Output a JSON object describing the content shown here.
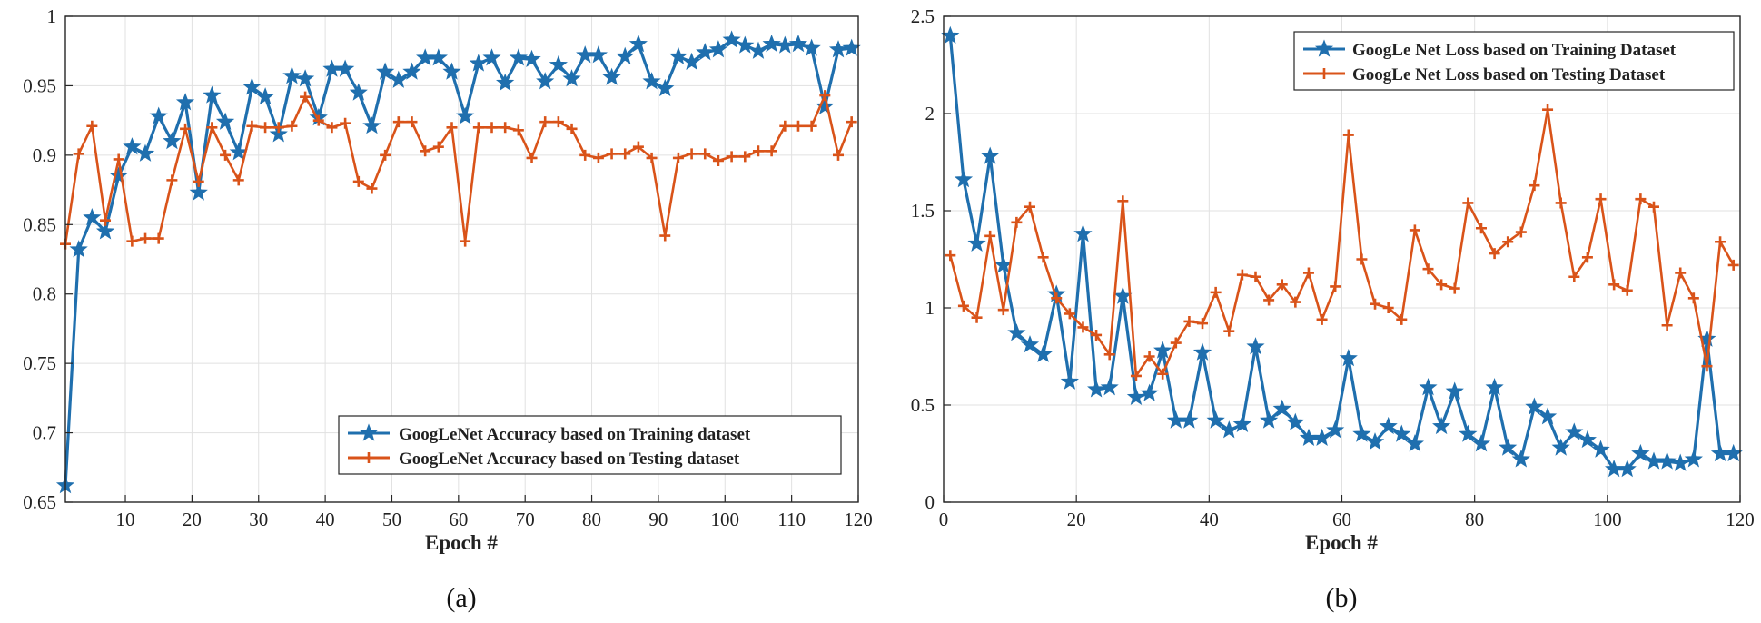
{
  "chart_data": [
    {
      "type": "line",
      "caption": "(a)",
      "xlabel": "Epoch #",
      "ylabel": "",
      "xlim": [
        1,
        120
      ],
      "ylim": [
        0.65,
        1
      ],
      "xticks": [
        10,
        20,
        30,
        40,
        50,
        60,
        70,
        80,
        90,
        100,
        110,
        120
      ],
      "xtick_labels": [
        "10",
        "20",
        "30",
        "40",
        "50",
        "60",
        "70",
        "80",
        "90",
        "100",
        "110",
        "120"
      ],
      "yticks": [
        0.65,
        0.7,
        0.75,
        0.8,
        0.85,
        0.9,
        0.95,
        1
      ],
      "ytick_labels": [
        "0.65",
        "0.7",
        "0.75",
        "0.8",
        "0.85",
        "0.9",
        "0.95",
        "1"
      ],
      "grid": true,
      "legend_position": "bottom-right",
      "x": [
        1,
        3,
        5,
        7,
        9,
        11,
        13,
        15,
        17,
        19,
        21,
        23,
        25,
        27,
        29,
        31,
        33,
        35,
        37,
        39,
        41,
        43,
        45,
        47,
        49,
        51,
        53,
        55,
        57,
        59,
        61,
        63,
        65,
        67,
        69,
        71,
        73,
        75,
        77,
        79,
        81,
        83,
        85,
        87,
        89,
        91,
        93,
        95,
        97,
        99,
        101,
        103,
        105,
        107,
        109,
        111,
        113,
        115,
        117,
        119
      ],
      "series": [
        {
          "name": "GoogLeNet Accuracy based on Training dataset",
          "color": "#1f6fae",
          "marker": "star",
          "values": [
            0.662,
            0.832,
            0.855,
            0.845,
            0.885,
            0.906,
            0.901,
            0.928,
            0.91,
            0.938,
            0.873,
            0.943,
            0.924,
            0.902,
            0.949,
            0.942,
            0.915,
            0.957,
            0.955,
            0.927,
            0.962,
            0.962,
            0.945,
            0.921,
            0.96,
            0.954,
            0.96,
            0.97,
            0.97,
            0.96,
            0.928,
            0.966,
            0.97,
            0.952,
            0.97,
            0.969,
            0.953,
            0.965,
            0.955,
            0.972,
            0.972,
            0.956,
            0.971,
            0.98,
            0.953,
            0.948,
            0.971,
            0.967,
            0.974,
            0.976,
            0.983,
            0.979,
            0.975,
            0.98,
            0.979,
            0.98,
            0.977,
            0.935,
            0.976,
            0.977
          ]
        },
        {
          "name": "GoogLeNet Accuracy based on Testing dataset",
          "color": "#d95319",
          "marker": "plus",
          "values": [
            0.836,
            0.901,
            0.921,
            0.853,
            0.897,
            0.838,
            0.84,
            0.84,
            0.882,
            0.919,
            0.881,
            0.92,
            0.9,
            0.882,
            0.921,
            0.92,
            0.92,
            0.921,
            0.942,
            0.925,
            0.92,
            0.923,
            0.881,
            0.876,
            0.9,
            0.924,
            0.924,
            0.903,
            0.906,
            0.92,
            0.838,
            0.92,
            0.92,
            0.92,
            0.918,
            0.898,
            0.924,
            0.924,
            0.919,
            0.9,
            0.898,
            0.901,
            0.901,
            0.906,
            0.898,
            0.842,
            0.898,
            0.901,
            0.901,
            0.896,
            0.899,
            0.899,
            0.903,
            0.903,
            0.921,
            0.921,
            0.921,
            0.943,
            0.9,
            0.924
          ]
        }
      ]
    },
    {
      "type": "line",
      "caption": "(b)",
      "xlabel": "Epoch #",
      "ylabel": "",
      "xlim": [
        0,
        120
      ],
      "ylim": [
        0,
        2.5
      ],
      "xticks": [
        0,
        20,
        40,
        60,
        80,
        100,
        120
      ],
      "xtick_labels": [
        "0",
        "20",
        "40",
        "60",
        "80",
        "100",
        "120"
      ],
      "yticks": [
        0,
        0.5,
        1,
        1.5,
        2,
        2.5
      ],
      "ytick_labels": [
        "0",
        "0.5",
        "1",
        "1.5",
        "2",
        "2.5"
      ],
      "grid": true,
      "legend_position": "top-right",
      "x": [
        1,
        3,
        5,
        7,
        9,
        11,
        13,
        15,
        17,
        19,
        21,
        23,
        25,
        27,
        29,
        31,
        33,
        35,
        37,
        39,
        41,
        43,
        45,
        47,
        49,
        51,
        53,
        55,
        57,
        59,
        61,
        63,
        65,
        67,
        69,
        71,
        73,
        75,
        77,
        79,
        81,
        83,
        85,
        87,
        89,
        91,
        93,
        95,
        97,
        99,
        101,
        103,
        105,
        107,
        109,
        111,
        113,
        115,
        117,
        119
      ],
      "series": [
        {
          "name": "GoogLe Net Loss based on Training Dataset",
          "color": "#1f6fae",
          "marker": "star",
          "values": [
            2.4,
            1.66,
            1.33,
            1.78,
            1.22,
            0.87,
            0.81,
            0.76,
            1.07,
            0.62,
            1.38,
            0.58,
            0.59,
            1.06,
            0.54,
            0.56,
            0.78,
            0.42,
            0.42,
            0.77,
            0.42,
            0.37,
            0.4,
            0.8,
            0.42,
            0.48,
            0.41,
            0.33,
            0.33,
            0.37,
            0.74,
            0.35,
            0.31,
            0.39,
            0.35,
            0.3,
            0.59,
            0.39,
            0.57,
            0.35,
            0.3,
            0.59,
            0.28,
            0.22,
            0.49,
            0.44,
            0.28,
            0.36,
            0.32,
            0.27,
            0.17,
            0.17,
            0.25,
            0.21,
            0.21,
            0.2,
            0.22,
            0.84,
            0.25,
            0.25
          ]
        },
        {
          "name": "GoogLe Net Loss based on Testing Dataset",
          "color": "#d95319",
          "marker": "plus",
          "values": [
            1.27,
            1.01,
            0.95,
            1.37,
            0.99,
            1.44,
            1.52,
            1.26,
            1.05,
            0.97,
            0.9,
            0.86,
            0.76,
            1.55,
            0.65,
            0.75,
            0.66,
            0.82,
            0.93,
            0.92,
            1.08,
            0.88,
            1.17,
            1.16,
            1.04,
            1.12,
            1.03,
            1.18,
            0.94,
            1.11,
            1.89,
            1.25,
            1.02,
            1.0,
            0.94,
            1.4,
            1.2,
            1.12,
            1.1,
            1.54,
            1.41,
            1.28,
            1.34,
            1.39,
            1.63,
            2.02,
            1.54,
            1.16,
            1.26,
            1.56,
            1.12,
            1.09,
            1.56,
            1.52,
            0.91,
            1.18,
            1.05,
            0.7,
            1.34,
            1.22
          ]
        }
      ]
    }
  ]
}
